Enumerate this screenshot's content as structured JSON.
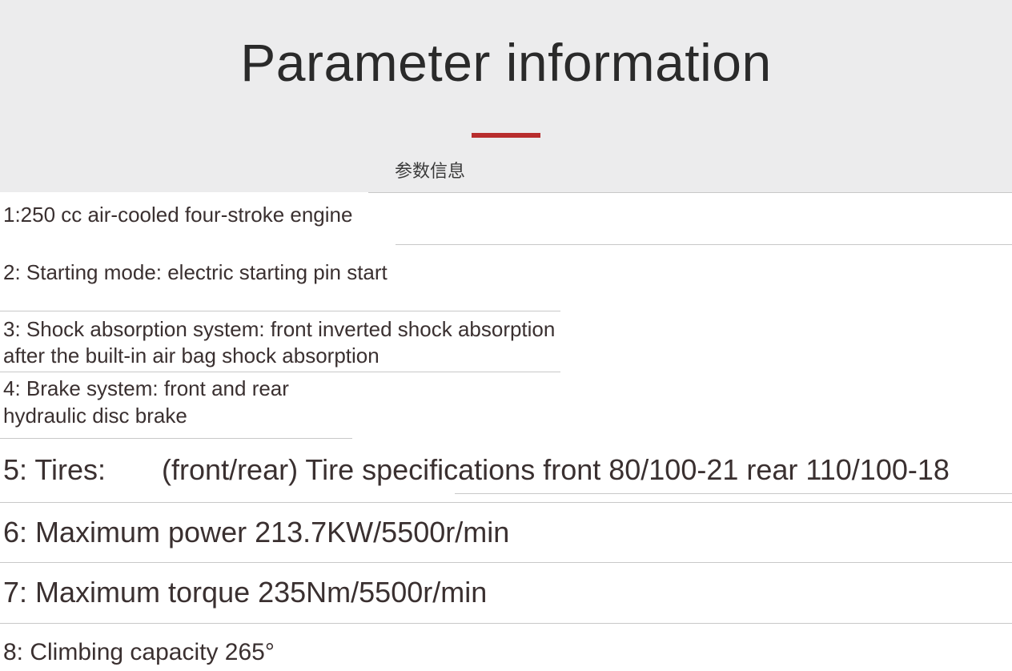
{
  "header": {
    "title": "Parameter information",
    "subtitle": "参数信息"
  },
  "specs": {
    "row1": "1:250 cc air-cooled four-stroke engine",
    "row2": "2: Starting mode: electric starting pin start",
    "row3": "3: Shock absorption system: front inverted shock absorption after the built-in air bag shock absorption",
    "row4": "4: Brake system: front and rear hydraulic disc brake",
    "row5_label": "5: Tires:",
    "row5_value": "(front/rear) Tire specifications front 80/100-21 rear 110/100-18",
    "row6": "6: Maximum power 213.7KW/5500r/min",
    "row7": "7: Maximum torque 235Nm/5500r/min",
    "row8": "8: Climbing capacity 265°"
  },
  "styling": {
    "background_header": "#ececed",
    "background_body": "#ffffff",
    "title_color": "#2a2a2a",
    "title_fontsize": 66,
    "divider_color": "#b82d2d",
    "divider_width": 86,
    "divider_height": 6,
    "subtitle_fontsize": 22,
    "text_color": "#3a3030",
    "border_color": "#c8c8c8",
    "small_fontsize": 26,
    "large_fontsize": 36,
    "font_family": "Segoe UI"
  }
}
